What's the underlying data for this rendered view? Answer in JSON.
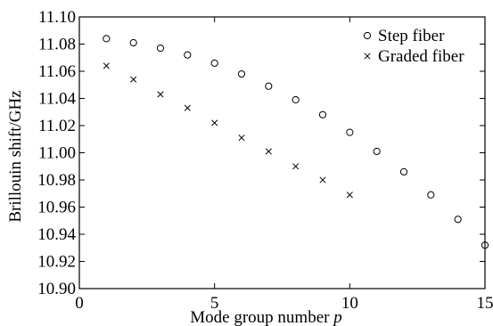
{
  "chart_data": {
    "type": "scatter",
    "xlabel": "Mode group number p",
    "xlabel_main": "Mode group number ",
    "xlabel_var": "p",
    "ylabel": "Brillouin shift/GHz",
    "xlim": [
      0,
      15
    ],
    "ylim": [
      10.9,
      11.1
    ],
    "x_ticks": [
      0,
      5,
      10,
      15
    ],
    "x_tick_labels": [
      "0",
      "5",
      "10",
      "15"
    ],
    "y_ticks": [
      10.9,
      10.92,
      10.94,
      10.96,
      10.98,
      11.0,
      11.02,
      11.04,
      11.06,
      11.08,
      11.1
    ],
    "y_tick_labels": [
      "10.90",
      "10.92",
      "10.94",
      "10.96",
      "10.98",
      "11.00",
      "11.02",
      "11.04",
      "11.06",
      "11.08",
      "11.10"
    ],
    "grid": false,
    "legend_position": "top-right",
    "series": [
      {
        "name": "Step fiber",
        "marker": "circle",
        "x": [
          1,
          2,
          3,
          4,
          5,
          6,
          7,
          8,
          9,
          10,
          11,
          12,
          13,
          14,
          15
        ],
        "y": [
          11.084,
          11.081,
          11.077,
          11.072,
          11.066,
          11.058,
          11.049,
          11.039,
          11.028,
          11.015,
          11.001,
          10.986,
          10.969,
          10.951,
          10.932
        ]
      },
      {
        "name": "Graded fiber",
        "marker": "cross",
        "x": [
          1,
          2,
          3,
          4,
          5,
          6,
          7,
          8,
          9,
          10
        ],
        "y": [
          11.064,
          11.054,
          11.043,
          11.033,
          11.022,
          11.011,
          11.001,
          10.99,
          10.98,
          10.969
        ]
      }
    ]
  }
}
